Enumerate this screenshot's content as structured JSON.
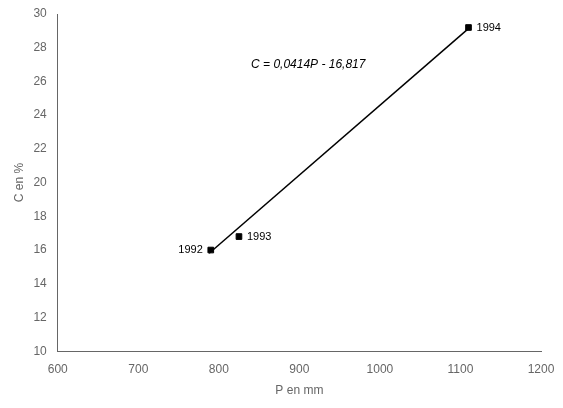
{
  "chart_data": {
    "type": "scatter",
    "xlabel": "P en mm",
    "ylabel": "C en %",
    "xlim": [
      600,
      1200
    ],
    "ylim": [
      10,
      30
    ],
    "xticks": [
      600,
      700,
      800,
      900,
      1000,
      1100,
      1200
    ],
    "yticks": [
      10,
      12,
      14,
      16,
      18,
      20,
      22,
      24,
      26,
      28,
      30
    ],
    "grid": false,
    "series": [
      {
        "type": "scatter",
        "marker": "square",
        "color": "#000000",
        "x": [
          790,
          825,
          1110
        ],
        "values": [
          16.0,
          16.8,
          29.2
        ],
        "labels": [
          "1992",
          "1993",
          "1994"
        ]
      },
      {
        "type": "line",
        "line_style": "solid",
        "color": "#000000",
        "x": [
          788,
          1112
        ],
        "values": [
          15.8062,
          29.2198
        ]
      }
    ],
    "annotations": [
      {
        "text": "C = 0,0414P - 16,817",
        "x": 840,
        "y": 26.8
      }
    ]
  }
}
